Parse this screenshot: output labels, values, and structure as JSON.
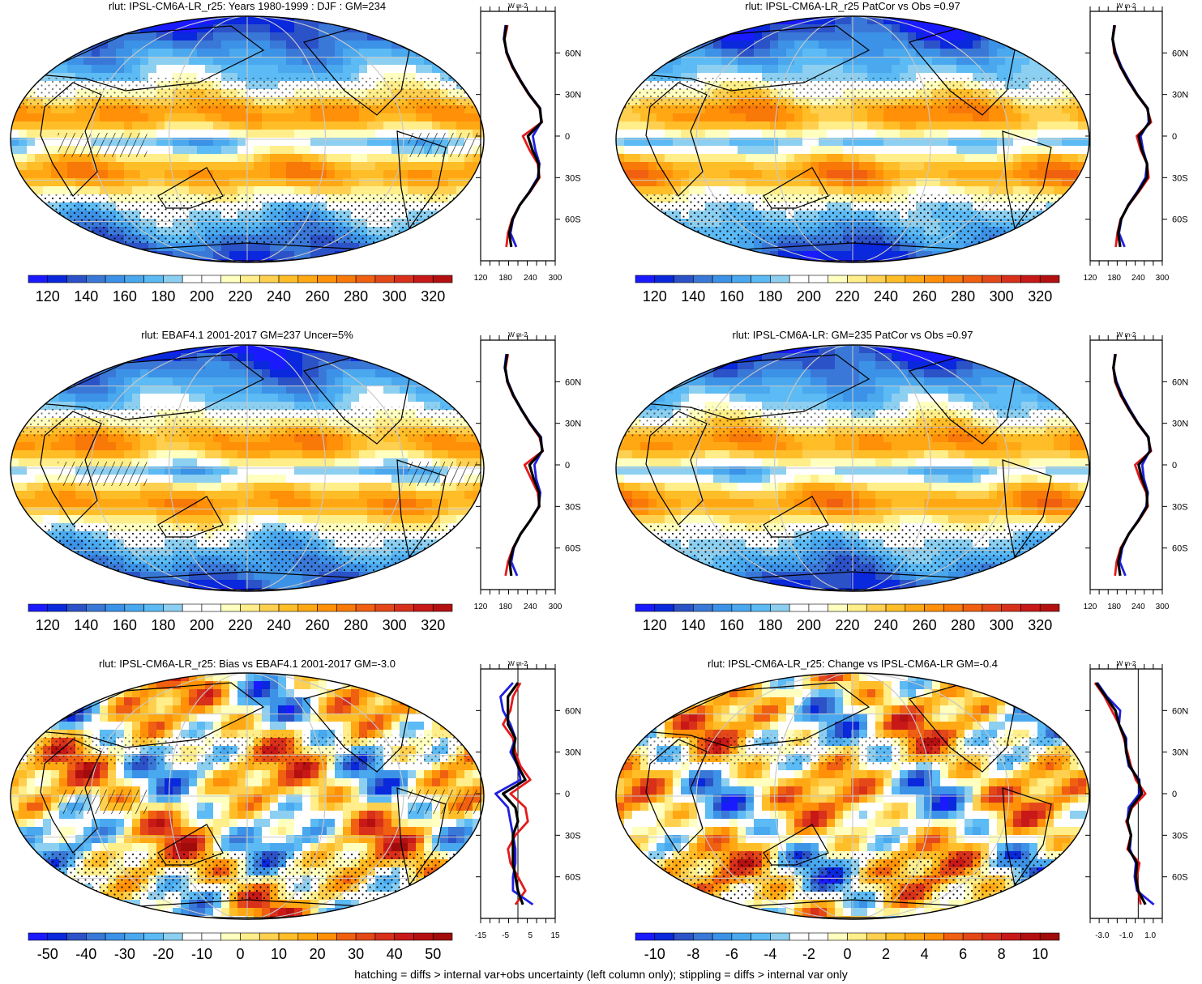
{
  "footer": "hatching = diffs > internal var+obs uncertainty (left column only); stippling = diffs > internal var only",
  "units_label": "W m-2",
  "lat_labels": [
    "60N",
    "30N",
    "0",
    "30S",
    "60S"
  ],
  "colors": {
    "abs_scale": [
      "#1a1aff",
      "#0a28dc",
      "#2c52c8",
      "#3a78d8",
      "#3c92e6",
      "#4aa8ee",
      "#5cbaf4",
      "#8ccff0",
      "#ffffff",
      "#ffffff",
      "#ffffc0",
      "#ffee8a",
      "#ffd050",
      "#ffbe28",
      "#ffa814",
      "#ff9008",
      "#f87808",
      "#f06010",
      "#e44818",
      "#d8301a",
      "#c81818",
      "#b41010"
    ],
    "div_scale": [
      "#1a1aff",
      "#0a28dc",
      "#2c52c8",
      "#3a78d8",
      "#3c92e6",
      "#4aa8ee",
      "#5cbaf4",
      "#8ccff0",
      "#ffffff",
      "#ffffff",
      "#ffffc0",
      "#ffee8a",
      "#ffd050",
      "#ffbe28",
      "#ffa814",
      "#ff9008",
      "#f06010",
      "#e44818",
      "#d8301a",
      "#c81818",
      "#b41010",
      "#a00c0c"
    ],
    "model_line": "#e41a1c",
    "obs_line": "#1f1fe0",
    "mean_line": "#000000"
  },
  "chart_data": [
    {
      "type": "heatmap",
      "title": "rlut: IPSL-CM6A-LR_r25: Years 1980-1999 : DJF : GM=234",
      "colorbar": {
        "ticks": [
          "120",
          "140",
          "160",
          "180",
          "200",
          "220",
          "240",
          "260",
          "280",
          "300",
          "320"
        ],
        "range": [
          110,
          330
        ],
        "scale": "abs_scale"
      },
      "profile": {
        "xticks": [
          "120",
          "180",
          "240",
          "300"
        ],
        "xrange": [
          120,
          300
        ],
        "lat": [
          80,
          70,
          60,
          50,
          40,
          30,
          20,
          10,
          0,
          -10,
          -20,
          -30,
          -40,
          -50,
          -60,
          -70,
          -80
        ],
        "series": [
          {
            "name": "model",
            "values": [
              185,
              178,
              182,
              196,
              215,
              236,
              262,
              268,
              222,
              238,
              258,
              262,
              240,
              214,
              196,
              186,
              182
            ]
          },
          {
            "name": "obs",
            "values": [
              180,
              176,
              184,
              198,
              217,
              238,
              264,
              266,
              246,
              252,
              262,
              258,
              238,
              214,
              198,
              192,
              206
            ]
          },
          {
            "name": "mean",
            "values": [
              182,
              177,
              183,
              197,
              216,
              237,
              263,
              267,
              234,
              245,
              260,
              260,
              239,
              214,
              197,
              189,
              194
            ]
          }
        ]
      }
    },
    {
      "type": "heatmap",
      "title": "rlut: IPSL-CM6A-LR_r25 PatCor vs Obs =0.97",
      "colorbar": {
        "ticks": [
          "120",
          "140",
          "160",
          "180",
          "200",
          "220",
          "240",
          "260",
          "280",
          "300",
          "320"
        ],
        "range": [
          110,
          330
        ],
        "scale": "abs_scale"
      },
      "profile": {
        "xticks": [
          "120",
          "180",
          "240",
          "300"
        ],
        "xrange": [
          120,
          300
        ],
        "lat": [
          80,
          70,
          60,
          50,
          40,
          30,
          20,
          10,
          0,
          -10,
          -20,
          -30,
          -40,
          -50,
          -60,
          -70,
          -80
        ],
        "series": [
          {
            "name": "model",
            "values": [
              182,
              176,
              180,
              195,
              214,
              236,
              262,
              272,
              236,
              246,
              262,
              266,
              242,
              216,
              196,
              188,
              184
            ]
          },
          {
            "name": "obs",
            "values": [
              180,
              176,
              184,
              198,
              217,
              238,
              264,
              266,
              246,
              252,
              262,
              258,
              238,
              214,
              198,
              192,
              206
            ]
          },
          {
            "name": "mean",
            "values": [
              181,
              176,
              182,
              196,
              215,
              237,
              263,
              269,
              241,
              249,
              262,
              262,
              240,
              215,
              197,
              190,
              195
            ]
          }
        ]
      }
    },
    {
      "type": "heatmap",
      "title": "rlut: EBAF4.1 2001-2017 GM=237 Uncer=5%",
      "colorbar": {
        "ticks": [
          "120",
          "140",
          "160",
          "180",
          "200",
          "220",
          "240",
          "260",
          "280",
          "300",
          "320"
        ],
        "range": [
          110,
          330
        ],
        "scale": "abs_scale"
      },
      "profile": {
        "xticks": [
          "120",
          "180",
          "240",
          "300"
        ],
        "xrange": [
          120,
          300
        ],
        "lat": [
          80,
          70,
          60,
          50,
          40,
          30,
          20,
          10,
          0,
          -10,
          -20,
          -30,
          -40,
          -50,
          -60,
          -70,
          -80
        ],
        "series": [
          {
            "name": "model",
            "values": [
              186,
              180,
              184,
              198,
              218,
              238,
              262,
              270,
              226,
              242,
              258,
              262,
              240,
              216,
              198,
              186,
              180
            ]
          },
          {
            "name": "obs",
            "values": [
              182,
              178,
              186,
              200,
              219,
              240,
              266,
              268,
              250,
              254,
              264,
              260,
              240,
              216,
              200,
              194,
              208
            ]
          },
          {
            "name": "mean",
            "values": [
              184,
              179,
              185,
              199,
              218,
              239,
              264,
              269,
              238,
              248,
              261,
              261,
              240,
              216,
              199,
              190,
              194
            ]
          }
        ]
      }
    },
    {
      "type": "heatmap",
      "title": "rlut: IPSL-CM6A-LR: GM=235 PatCor vs Obs =0.97",
      "colorbar": {
        "ticks": [
          "120",
          "140",
          "160",
          "180",
          "200",
          "220",
          "240",
          "260",
          "280",
          "300",
          "320"
        ],
        "range": [
          110,
          330
        ],
        "scale": "abs_scale"
      },
      "profile": {
        "xticks": [
          "120",
          "180",
          "240",
          "300"
        ],
        "xrange": [
          120,
          300
        ],
        "lat": [
          80,
          70,
          60,
          50,
          40,
          30,
          20,
          10,
          0,
          -10,
          -20,
          -30,
          -40,
          -50,
          -60,
          -70,
          -80
        ],
        "series": [
          {
            "name": "model",
            "values": [
              184,
              178,
              182,
              196,
              216,
              238,
              264,
              272,
              232,
              244,
              260,
              264,
              242,
              216,
              196,
              186,
              182
            ]
          },
          {
            "name": "obs",
            "values": [
              182,
              178,
              186,
              200,
              219,
              240,
              266,
              268,
              250,
              254,
              264,
              260,
              240,
              216,
              200,
              194,
              208
            ]
          },
          {
            "name": "mean",
            "values": [
              183,
              178,
              184,
              198,
              217,
              239,
              265,
              270,
              241,
              249,
              262,
              262,
              241,
              216,
              198,
              190,
              195
            ]
          }
        ]
      }
    },
    {
      "type": "heatmap",
      "title": "rlut: IPSL-CM6A-LR_r25: Bias vs EBAF4.1 2001-2017 GM=-3.0",
      "colorbar": {
        "ticks": [
          "-50",
          "-40",
          "-30",
          "-20",
          "-10",
          "0",
          "10",
          "20",
          "30",
          "40",
          "50"
        ],
        "range": [
          -55,
          55
        ],
        "scale": "div_scale"
      },
      "profile": {
        "xticks": [
          "-15",
          "-5",
          "5",
          "15"
        ],
        "xrange": [
          -15,
          15
        ],
        "lat": [
          80,
          70,
          60,
          50,
          40,
          30,
          20,
          10,
          0,
          -10,
          -20,
          -30,
          -40,
          -50,
          -60,
          -70,
          -80
        ],
        "series": [
          {
            "name": "model",
            "values": [
              1,
              -2,
              -3,
              -6,
              -2,
              -1,
              1,
              5,
              -3,
              3,
              4,
              -1,
              -4,
              -3,
              0,
              3,
              -1
            ]
          },
          {
            "name": "obs",
            "values": [
              -2,
              -7,
              -6,
              -3,
              -1,
              -3,
              0,
              1,
              -9,
              -4,
              -3,
              -2,
              -1,
              -1,
              -2,
              -2,
              6
            ]
          },
          {
            "name": "mean",
            "values": [
              0,
              -4,
              -4,
              -4,
              -1,
              -2,
              0,
              3,
              -6,
              -1,
              0,
              -2,
              -2,
              -2,
              -1,
              0,
              2
            ]
          }
        ]
      }
    },
    {
      "type": "heatmap",
      "title": "rlut: IPSL-CM6A-LR_r25: Change vs IPSL-CM6A-LR GM=-0.4",
      "colorbar": {
        "ticks": [
          "-10",
          "-8",
          "-6",
          "-4",
          "-2",
          "0",
          "2",
          "4",
          "6",
          "8",
          "10"
        ],
        "range": [
          -11,
          11
        ],
        "scale": "div_scale"
      },
      "profile": {
        "xticks": [
          "-3.0",
          "-1.0",
          "1.0"
        ],
        "xrange": [
          -4,
          2
        ],
        "lat": [
          80,
          70,
          60,
          50,
          40,
          30,
          20,
          10,
          0,
          -10,
          -20,
          -30,
          -40,
          -50,
          -60,
          -70,
          -80
        ],
        "series": [
          {
            "name": "model",
            "values": [
              -3.6,
              -2.8,
              -2.2,
              -1.6,
              -1.2,
              -0.9,
              -0.6,
              -0.2,
              0.6,
              -0.5,
              -1.0,
              -0.6,
              -0.9,
              0.1,
              -0.1,
              0.0,
              0.2
            ]
          },
          {
            "name": "obs",
            "values": [
              -3.4,
              -2.6,
              -1.5,
              -1.6,
              -1.0,
              -1.0,
              -0.8,
              0.1,
              0.1,
              -0.8,
              -0.9,
              -0.6,
              -0.7,
              -0.2,
              -0.3,
              -0.1,
              1.3
            ]
          },
          {
            "name": "mean",
            "values": [
              -3.5,
              -2.7,
              -1.9,
              -1.6,
              -1.1,
              -1.0,
              -0.7,
              0.0,
              0.3,
              -0.6,
              -0.9,
              -0.6,
              -0.8,
              -0.1,
              -0.2,
              0.0,
              0.6
            ]
          }
        ]
      }
    }
  ]
}
